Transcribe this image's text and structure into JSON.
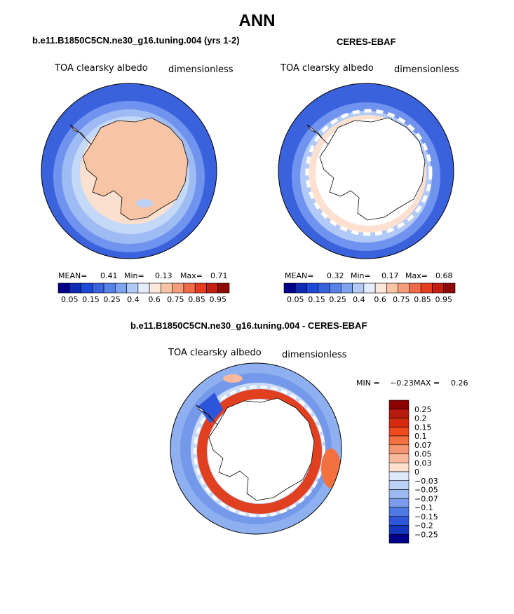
{
  "figure": {
    "title": "ANN"
  },
  "colors": {
    "ocean_dark": "#3a62dc",
    "ocean_mid": "#6f93ee",
    "ice_edge": "#bed5f8",
    "land_ctrl": "#f7c4a6",
    "land_pale": "#fbe0cf",
    "diff_red": "#e0401f",
    "diff_blue": "#2d55db"
  },
  "chart_data": [
    {
      "type": "heatmap",
      "title": "b.e11.B1850C5CN.ne30_g16.tuning.004 (yrs 1-2)",
      "variable": "TOA clearsky albedo",
      "units": "dimensionless",
      "projection": "south polar stereographic",
      "stats": {
        "mean_label": "MEAN=",
        "mean": "0.41",
        "min_label": "Min=",
        "min": "0.13",
        "max_label": "Max=",
        "max": "0.71"
      },
      "colorbar": {
        "orientation": "horizontal",
        "colors": [
          "#00008b",
          "#0d2bb5",
          "#1e49d6",
          "#3a62dc",
          "#5581e8",
          "#7fa2f1",
          "#b1c9f6",
          "#e3edfc",
          "#fde8dc",
          "#f7c4a6",
          "#f49d7a",
          "#ef6b49",
          "#e43d22",
          "#c21f11",
          "#8e0a07"
        ],
        "tick_labels": [
          "0.05",
          "0.15",
          "0.25",
          "0.4",
          "0.6",
          "0.75",
          "0.85",
          "0.95"
        ]
      }
    },
    {
      "type": "heatmap",
      "title": "CERES-EBAF",
      "variable": "TOA clearsky albedo",
      "units": "dimensionless",
      "projection": "south polar stereographic",
      "stats": {
        "mean_label": "MEAN=",
        "mean": "0.32",
        "min_label": "Min=",
        "min": "0.17",
        "max_label": "Max=",
        "max": "0.68"
      },
      "colorbar": {
        "orientation": "horizontal",
        "colors": [
          "#00008b",
          "#0d2bb5",
          "#1e49d6",
          "#3a62dc",
          "#5581e8",
          "#7fa2f1",
          "#b1c9f6",
          "#e3edfc",
          "#fde8dc",
          "#f7c4a6",
          "#f49d7a",
          "#ef6b49",
          "#e43d22",
          "#c21f11",
          "#8e0a07"
        ],
        "tick_labels": [
          "0.05",
          "0.15",
          "0.25",
          "0.4",
          "0.6",
          "0.75",
          "0.85",
          "0.95"
        ]
      }
    },
    {
      "type": "heatmap",
      "title": "b.e11.B1850C5CN.ne30_g16.tuning.004 - CERES-EBAF",
      "variable": "TOA clearsky albedo",
      "units": "dimensionless",
      "projection": "south polar stereographic",
      "stats": {
        "min_label": "MIN =",
        "min": "−0.23",
        "max_label": "MAX =",
        "max": "0.26"
      },
      "colorbar": {
        "orientation": "vertical",
        "colors": [
          "#8b0000",
          "#b51a0c",
          "#d62b11",
          "#ef4a1d",
          "#f4703f",
          "#f59572",
          "#f8b99c",
          "#fde0cc",
          "#dde9fb",
          "#bcd1f6",
          "#9cb9f2",
          "#789ceb",
          "#4e78e2",
          "#2e56d6",
          "#1437bd",
          "#00008b"
        ],
        "tick_labels": [
          "0.25",
          "0.2",
          "0.15",
          "0.1",
          "0.07",
          "0.05",
          "0.03",
          "0",
          "−0.03",
          "−0.05",
          "−0.07",
          "−0.1",
          "−0.15",
          "−0.2",
          "−0.25"
        ]
      }
    }
  ]
}
